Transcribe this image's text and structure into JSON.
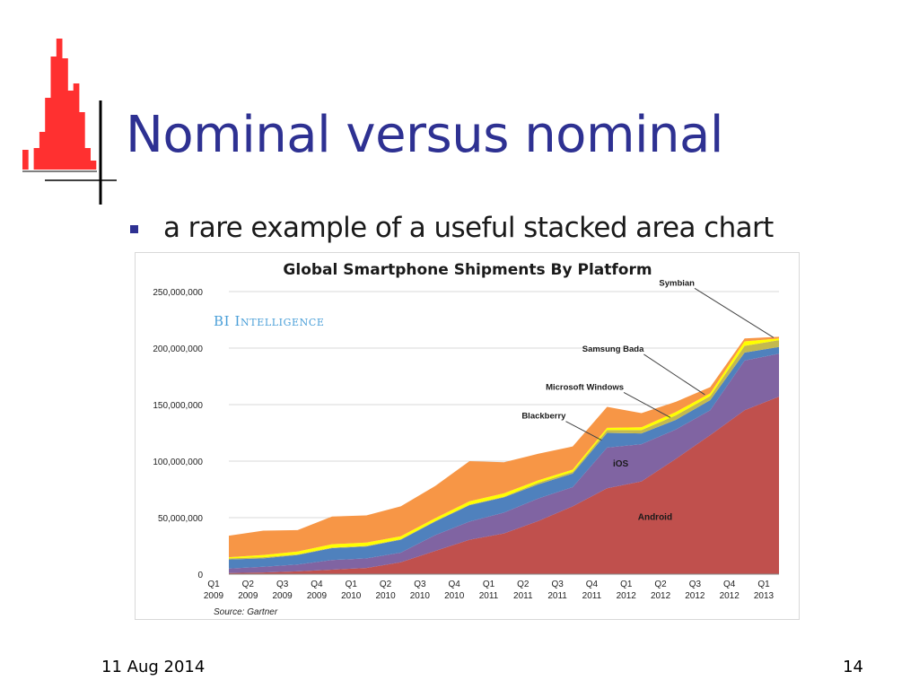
{
  "slide": {
    "title": "Nominal versus nominal",
    "bullet": "a rare example of a useful stacked area chart",
    "footer_date": "11 Aug 2014",
    "page_number": "14"
  },
  "colors": {
    "title": "#2e3192",
    "decor_histogram": "#ff3030"
  },
  "chart_data": {
    "type": "area",
    "stacked": true,
    "title": "Global Smartphone Shipments By Platform",
    "watermark": "BI Intelligence",
    "source": "Source: Gartner",
    "xlabel": "",
    "ylabel": "",
    "ylim": [
      0,
      250000000
    ],
    "yticks": [
      0,
      50000000,
      100000000,
      150000000,
      200000000,
      250000000
    ],
    "ytick_labels": [
      "0",
      "50,000,000",
      "100,000,000",
      "150,000,000",
      "200,000,000",
      "250,000,000"
    ],
    "grid": true,
    "categories": [
      {
        "q": "Q1",
        "y": "2009"
      },
      {
        "q": "Q2",
        "y": "2009"
      },
      {
        "q": "Q3",
        "y": "2009"
      },
      {
        "q": "Q4",
        "y": "2009"
      },
      {
        "q": "Q1",
        "y": "2010"
      },
      {
        "q": "Q2",
        "y": "2010"
      },
      {
        "q": "Q3",
        "y": "2010"
      },
      {
        "q": "Q4",
        "y": "2010"
      },
      {
        "q": "Q1",
        "y": "2011"
      },
      {
        "q": "Q2",
        "y": "2011"
      },
      {
        "q": "Q3",
        "y": "2011"
      },
      {
        "q": "Q4",
        "y": "2011"
      },
      {
        "q": "Q1",
        "y": "2012"
      },
      {
        "q": "Q2",
        "y": "2012"
      },
      {
        "q": "Q3",
        "y": "2012"
      },
      {
        "q": "Q4",
        "y": "2012"
      },
      {
        "q": "Q1",
        "y": "2013"
      }
    ],
    "series": [
      {
        "name": "Android",
        "color": "#c0504d",
        "values": [
          1000000,
          1500000,
          2500000,
          4000000,
          5500000,
          10500000,
          20500000,
          30500000,
          36000000,
          47000000,
          60000000,
          76000000,
          82000000,
          102000000,
          123000000,
          145000000,
          157000000
        ]
      },
      {
        "name": "iOS",
        "color": "#8064a2",
        "values": [
          4000000,
          5000000,
          6000000,
          8500000,
          8500000,
          8500000,
          14000000,
          16000000,
          18500000,
          20000000,
          17000000,
          36000000,
          33000000,
          26000000,
          22000000,
          44000000,
          38000000
        ]
      },
      {
        "name": "Blackberry",
        "color": "#4f81bd",
        "values": [
          8000000,
          7500000,
          8500000,
          10500000,
          10500000,
          11500000,
          12000000,
          14500000,
          13500000,
          12500000,
          12000000,
          13000000,
          9500000,
          8500000,
          9000000,
          7000000,
          6000000
        ]
      },
      {
        "name": "Microsoft Windows",
        "color": "#c4b94e",
        "values": [
          1000000,
          1000000,
          500000,
          500000,
          500000,
          500000,
          500000,
          500000,
          500000,
          1500000,
          1500000,
          2500000,
          3000000,
          4000000,
          3500000,
          6000000,
          6000000
        ]
      },
      {
        "name": "Samsung Bada",
        "color": "#ffff00",
        "values": [
          1000000,
          2000000,
          2500000,
          3000000,
          3000000,
          2500000,
          2500000,
          3000000,
          3000000,
          2000000,
          2000000,
          2000000,
          2500000,
          3000000,
          2500000,
          4000000,
          1500000
        ]
      },
      {
        "name": "Symbian",
        "color": "#f79646",
        "values": [
          19000000,
          21500000,
          19000000,
          24500000,
          24000000,
          26500000,
          28500000,
          35500000,
          27500000,
          23500000,
          20500000,
          18500000,
          12500000,
          9000000,
          5500000,
          2500000,
          1500000
        ]
      }
    ],
    "label_placement": {
      "Android": "inside",
      "iOS": "inside",
      "Blackberry": "callout",
      "Microsoft Windows": "callout",
      "Samsung Bada": "callout",
      "Symbian": "callout"
    }
  }
}
